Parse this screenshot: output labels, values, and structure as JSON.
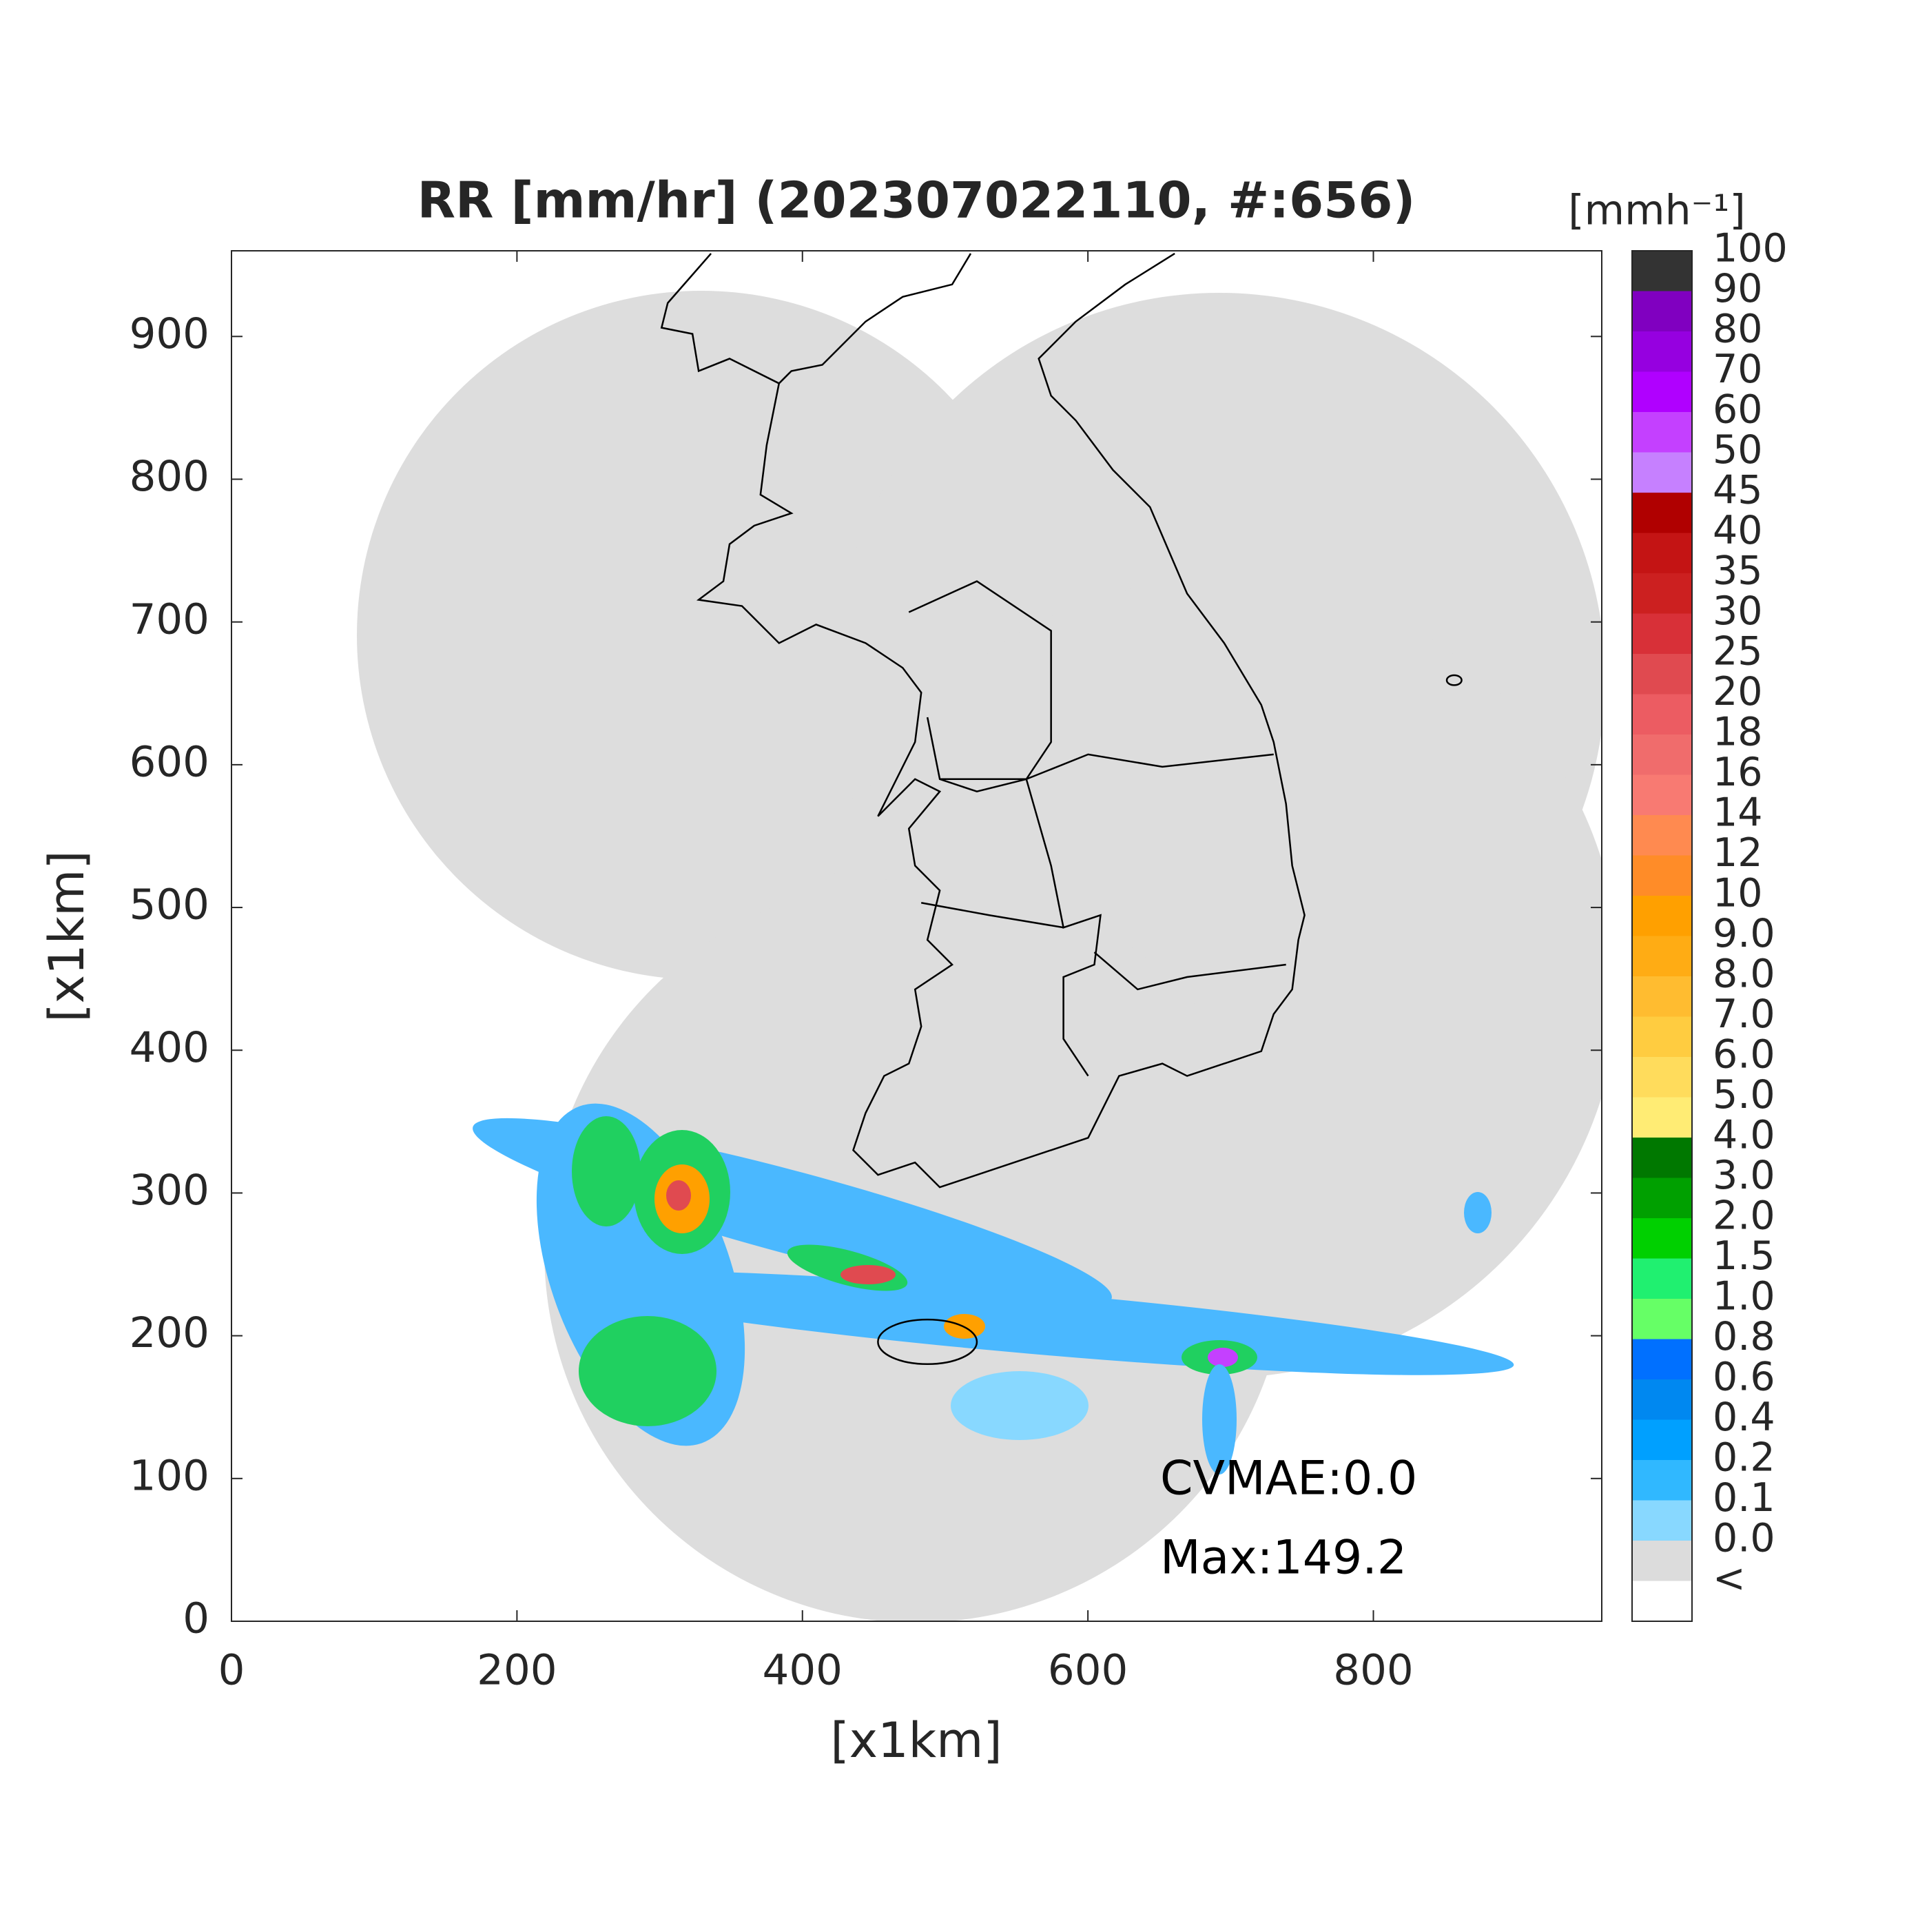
{
  "title": "RR [mm/hr] (202307022110, #:656)",
  "x_axis": {
    "label": "[x1km]",
    "lim": [
      0,
      960
    ],
    "ticks": [
      0,
      200,
      400,
      600,
      800
    ]
  },
  "y_axis": {
    "label": "[x1km]",
    "lim": [
      0,
      960
    ],
    "ticks": [
      0,
      100,
      200,
      300,
      400,
      500,
      600,
      700,
      800,
      900
    ]
  },
  "colorbar": {
    "unit": "[mmh⁻¹]",
    "labels": [
      "100",
      "90",
      "80",
      "70",
      "60",
      "50",
      "45",
      "40",
      "35",
      "30",
      "25",
      "20",
      "18",
      "16",
      "14",
      "12",
      "10",
      "9.0",
      "8.0",
      "7.0",
      "6.0",
      "5.0",
      "4.0",
      "3.0",
      "2.0",
      "1.5",
      "1.0",
      "0.8",
      "0.6",
      "0.4",
      "0.2",
      "0.1",
      "0.0",
      "<"
    ],
    "colors": [
      "#333333",
      "#8000c0",
      "#9600e0",
      "#b000ff",
      "#c440ff",
      "#c680ff",
      "#b00000",
      "#c41414",
      "#cc2020",
      "#d83038",
      "#e04a50",
      "#ec5c62",
      "#f06c6c",
      "#f87a72",
      "#ff8a50",
      "#ff8c28",
      "#ffa000",
      "#ffac14",
      "#ffbc30",
      "#ffcc40",
      "#ffdc5c",
      "#ffec74",
      "#007800",
      "#00a000",
      "#00d000",
      "#20f070",
      "#66ff66",
      "#0070ff",
      "#0088f0",
      "#00a0ff",
      "#30b8ff",
      "#88d8ff",
      "#dcdcdc",
      "#ffffff"
    ]
  },
  "annotations": [
    "CVMAE:0.0",
    "Max:149.2"
  ]
}
